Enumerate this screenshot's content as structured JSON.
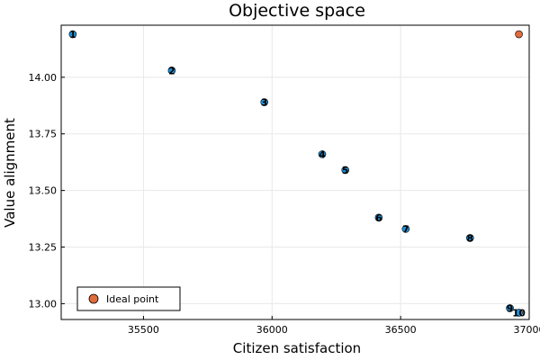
{
  "chart_data": {
    "type": "scatter",
    "title": "Objective space",
    "xlabel": "Citizen satisfaction",
    "ylabel": "Value alignment",
    "xlim": [
      35180,
      37000
    ],
    "ylim": [
      12.93,
      14.23
    ],
    "xticks": [
      35500,
      36000,
      36500,
      37000
    ],
    "yticks": [
      13.0,
      13.25,
      13.5,
      13.75,
      14.0
    ],
    "xtick_labels": [
      "35500",
      "36000",
      "36500",
      "37000"
    ],
    "ytick_labels": [
      "13.00",
      "13.25",
      "13.50",
      "13.75",
      "14.00"
    ],
    "grid": true,
    "legend_position": "bottom-left",
    "series": [
      {
        "color": "#1f8fd6",
        "points": [
          {
            "label": "1",
            "x": 35225,
            "y": 14.19
          },
          {
            "label": "2",
            "x": 35610,
            "y": 14.03
          },
          {
            "label": "3",
            "x": 35970,
            "y": 13.89
          },
          {
            "label": "4",
            "x": 36195,
            "y": 13.66
          },
          {
            "label": "5",
            "x": 36285,
            "y": 13.59
          },
          {
            "label": "6",
            "x": 36415,
            "y": 13.38
          },
          {
            "label": "7",
            "x": 36520,
            "y": 13.33
          },
          {
            "label": "8",
            "x": 36770,
            "y": 13.29
          },
          {
            "label": "9",
            "x": 36925,
            "y": 12.98
          },
          {
            "label": "10",
            "x": 36960,
            "y": 12.96
          }
        ]
      },
      {
        "name": "Ideal point",
        "color": "#e06c3c",
        "points": [
          {
            "x": 36960,
            "y": 14.19
          }
        ]
      }
    ]
  }
}
